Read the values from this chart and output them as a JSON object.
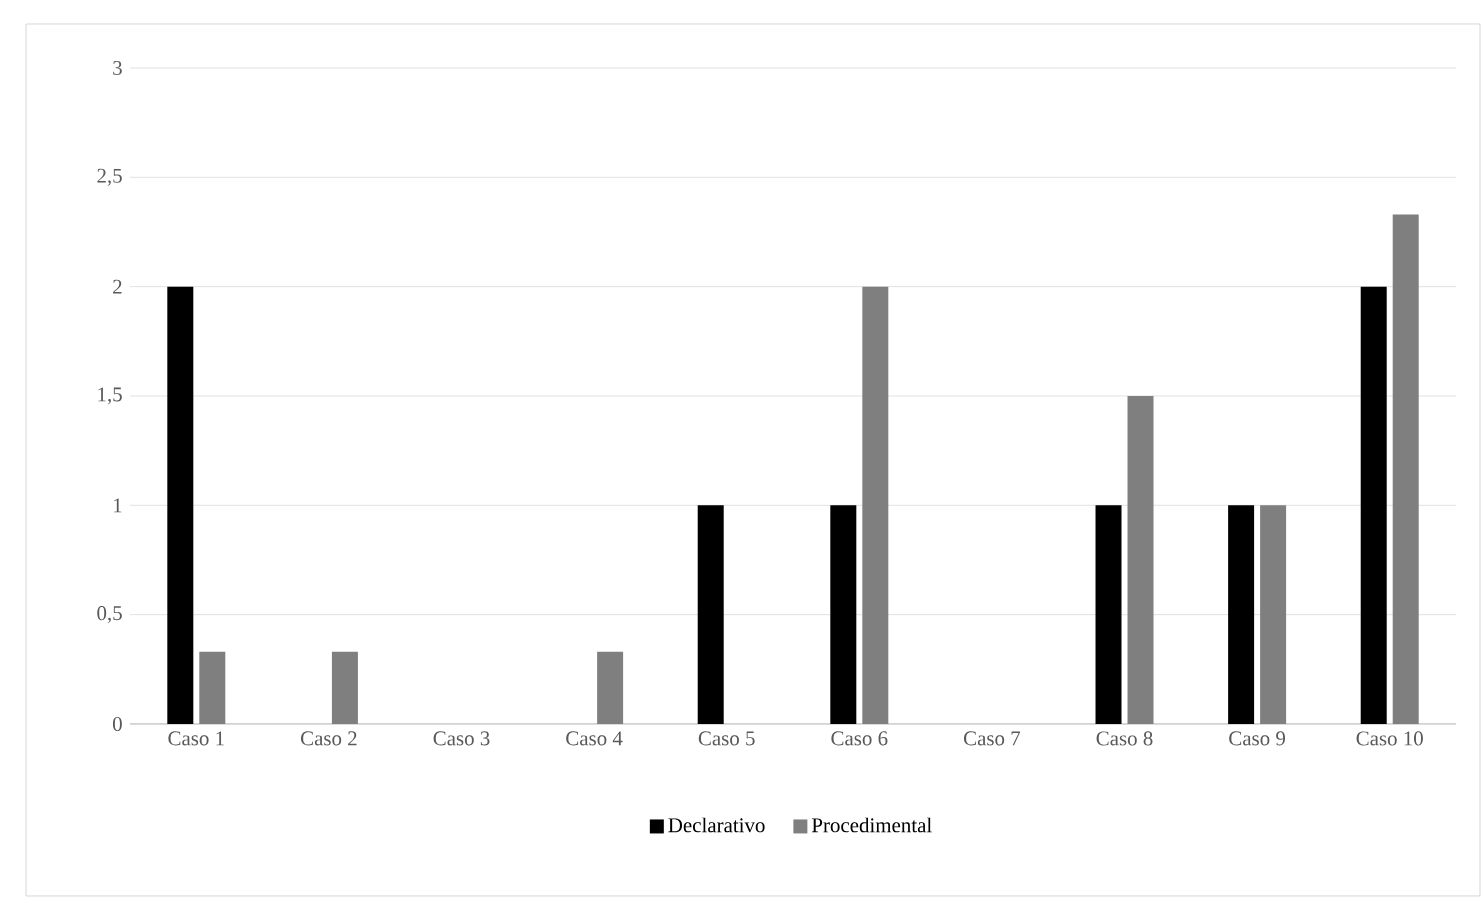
{
  "chart_data": {
    "type": "bar",
    "categories": [
      "Caso 1",
      "Caso 2",
      "Caso 3",
      "Caso 4",
      "Caso 5",
      "Caso 6",
      "Caso 7",
      "Caso 8",
      "Caso 9",
      "Caso 10"
    ],
    "series": [
      {
        "name": "Declarativo",
        "color": "#000000",
        "values": [
          2,
          0,
          0,
          0,
          1,
          1,
          0,
          1,
          1,
          2
        ]
      },
      {
        "name": "Procedimental",
        "color": "#7f7f7f",
        "values": [
          0.33,
          0.33,
          0,
          0.33,
          0,
          2,
          0,
          1.5,
          1,
          2.33
        ]
      }
    ],
    "ylim": [
      0,
      3
    ],
    "yticks": [
      0,
      {
        "value": 0.5,
        "label": "0,5"
      },
      1,
      {
        "value": 1.5,
        "label": "1,5"
      },
      2,
      {
        "value": 2.5,
        "label": "2,5"
      },
      3
    ],
    "grid": "y",
    "legend": "bottom"
  }
}
